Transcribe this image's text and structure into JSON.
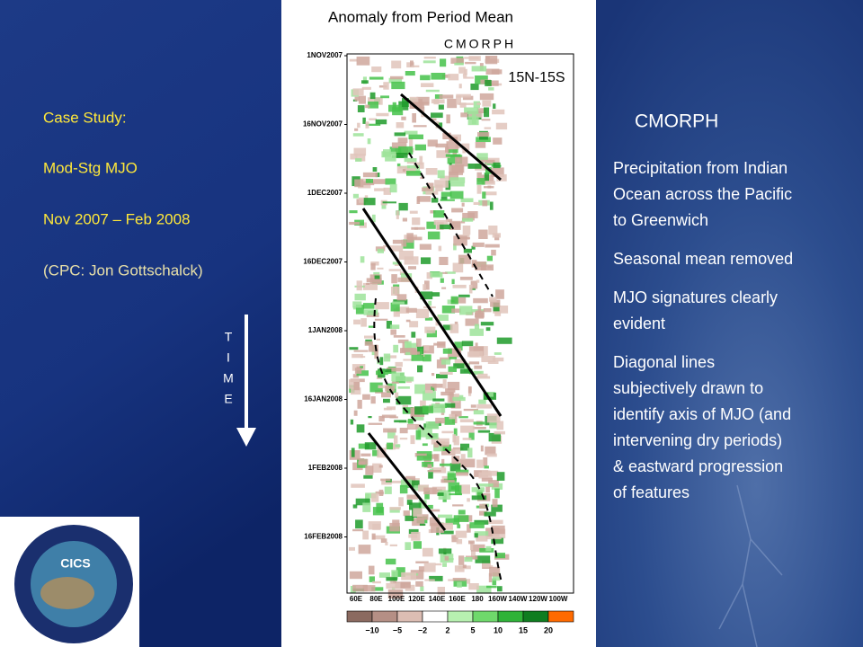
{
  "left": {
    "lines": [
      "Case Study:",
      "Mod-Stg MJO",
      "Nov 2007 – Feb 2008",
      "(CPC: Jon Gottschalck)"
    ],
    "time_letters": [
      "T",
      "I",
      "M",
      "E"
    ]
  },
  "figure": {
    "title": "Anomaly from Period Mean",
    "dataset": "CMORPH",
    "region": "15N-15S",
    "y_labels": [
      "1NOV2007",
      "16NOV2007",
      "1DEC2007",
      "16DEC2007",
      "1JAN2008",
      "16JAN2008",
      "1FEB2008",
      "16FEB2008"
    ],
    "x_labels": [
      "60E",
      "80E",
      "100E",
      "120E",
      "140E",
      "160E",
      "180",
      "160W",
      "140W",
      "120W",
      "100W"
    ],
    "colorbar_labels": [
      "−10",
      "−5",
      "−2",
      "2",
      "5",
      "10",
      "15",
      "20"
    ]
  },
  "right": {
    "heading": "CMORPH",
    "bullets": [
      [
        "Precipitation from Indian",
        "Ocean across the Pacific",
        "to Greenwich"
      ],
      [
        "Seasonal mean removed"
      ],
      [
        "MJO signatures clearly",
        "evident"
      ],
      [
        "Diagonal lines",
        "subjectively drawn to",
        "identify axis of MJO (and",
        "intervening dry periods)",
        "& eastward progression",
        "of features"
      ]
    ]
  },
  "logo": {
    "text": "CICS"
  }
}
